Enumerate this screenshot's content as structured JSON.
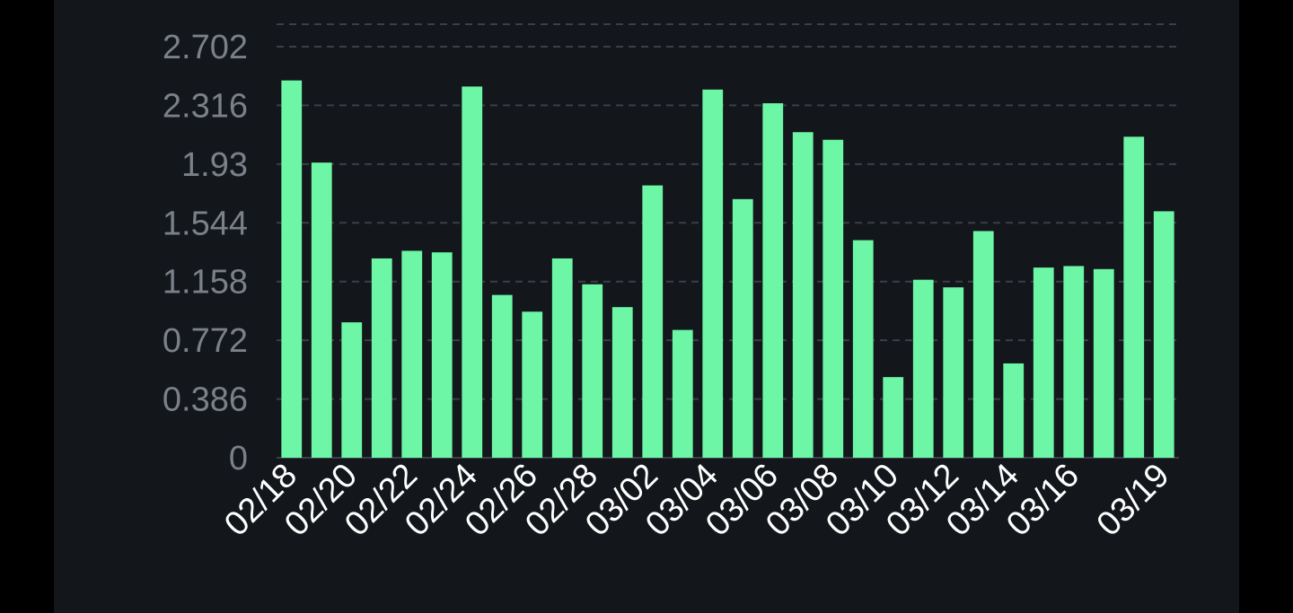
{
  "colors": {
    "background": "#000000",
    "panel": "#13161b",
    "bar": "#6cf6a6",
    "grid": "#3a3f48",
    "y_tick_text": "#7b8089",
    "x_tick_text": "#ffffff"
  },
  "chart_data": {
    "type": "bar",
    "grid": true,
    "ylim": [
      0,
      2.702
    ],
    "y_ticks": [
      "0",
      "0.386",
      "0.772",
      "1.158",
      "1.544",
      "1.93",
      "2.316",
      "2.702"
    ],
    "categories": [
      "02/18",
      "02/19",
      "02/20",
      "02/21",
      "02/22",
      "02/23",
      "02/24",
      "02/25",
      "02/26",
      "02/27",
      "02/28",
      "03/01",
      "03/02",
      "03/03",
      "03/04",
      "03/05",
      "03/06",
      "03/07",
      "03/08",
      "03/09",
      "03/10",
      "03/11",
      "03/12",
      "03/13",
      "03/14",
      "03/15",
      "03/16",
      "03/17",
      "03/18",
      "03/19"
    ],
    "x_tick_labels": [
      "02/18",
      "02/20",
      "02/22",
      "02/24",
      "02/26",
      "02/28",
      "03/02",
      "03/04",
      "03/06",
      "03/08",
      "03/10",
      "03/12",
      "03/14",
      "03/16",
      "03/19"
    ],
    "values": [
      2.48,
      1.94,
      0.89,
      1.31,
      1.36,
      1.35,
      2.44,
      1.07,
      0.96,
      1.31,
      1.14,
      0.99,
      1.79,
      0.84,
      2.42,
      1.7,
      2.33,
      2.14,
      2.09,
      1.43,
      0.53,
      1.17,
      1.12,
      1.49,
      0.62,
      1.25,
      1.26,
      1.24,
      2.11,
      1.62
    ]
  }
}
